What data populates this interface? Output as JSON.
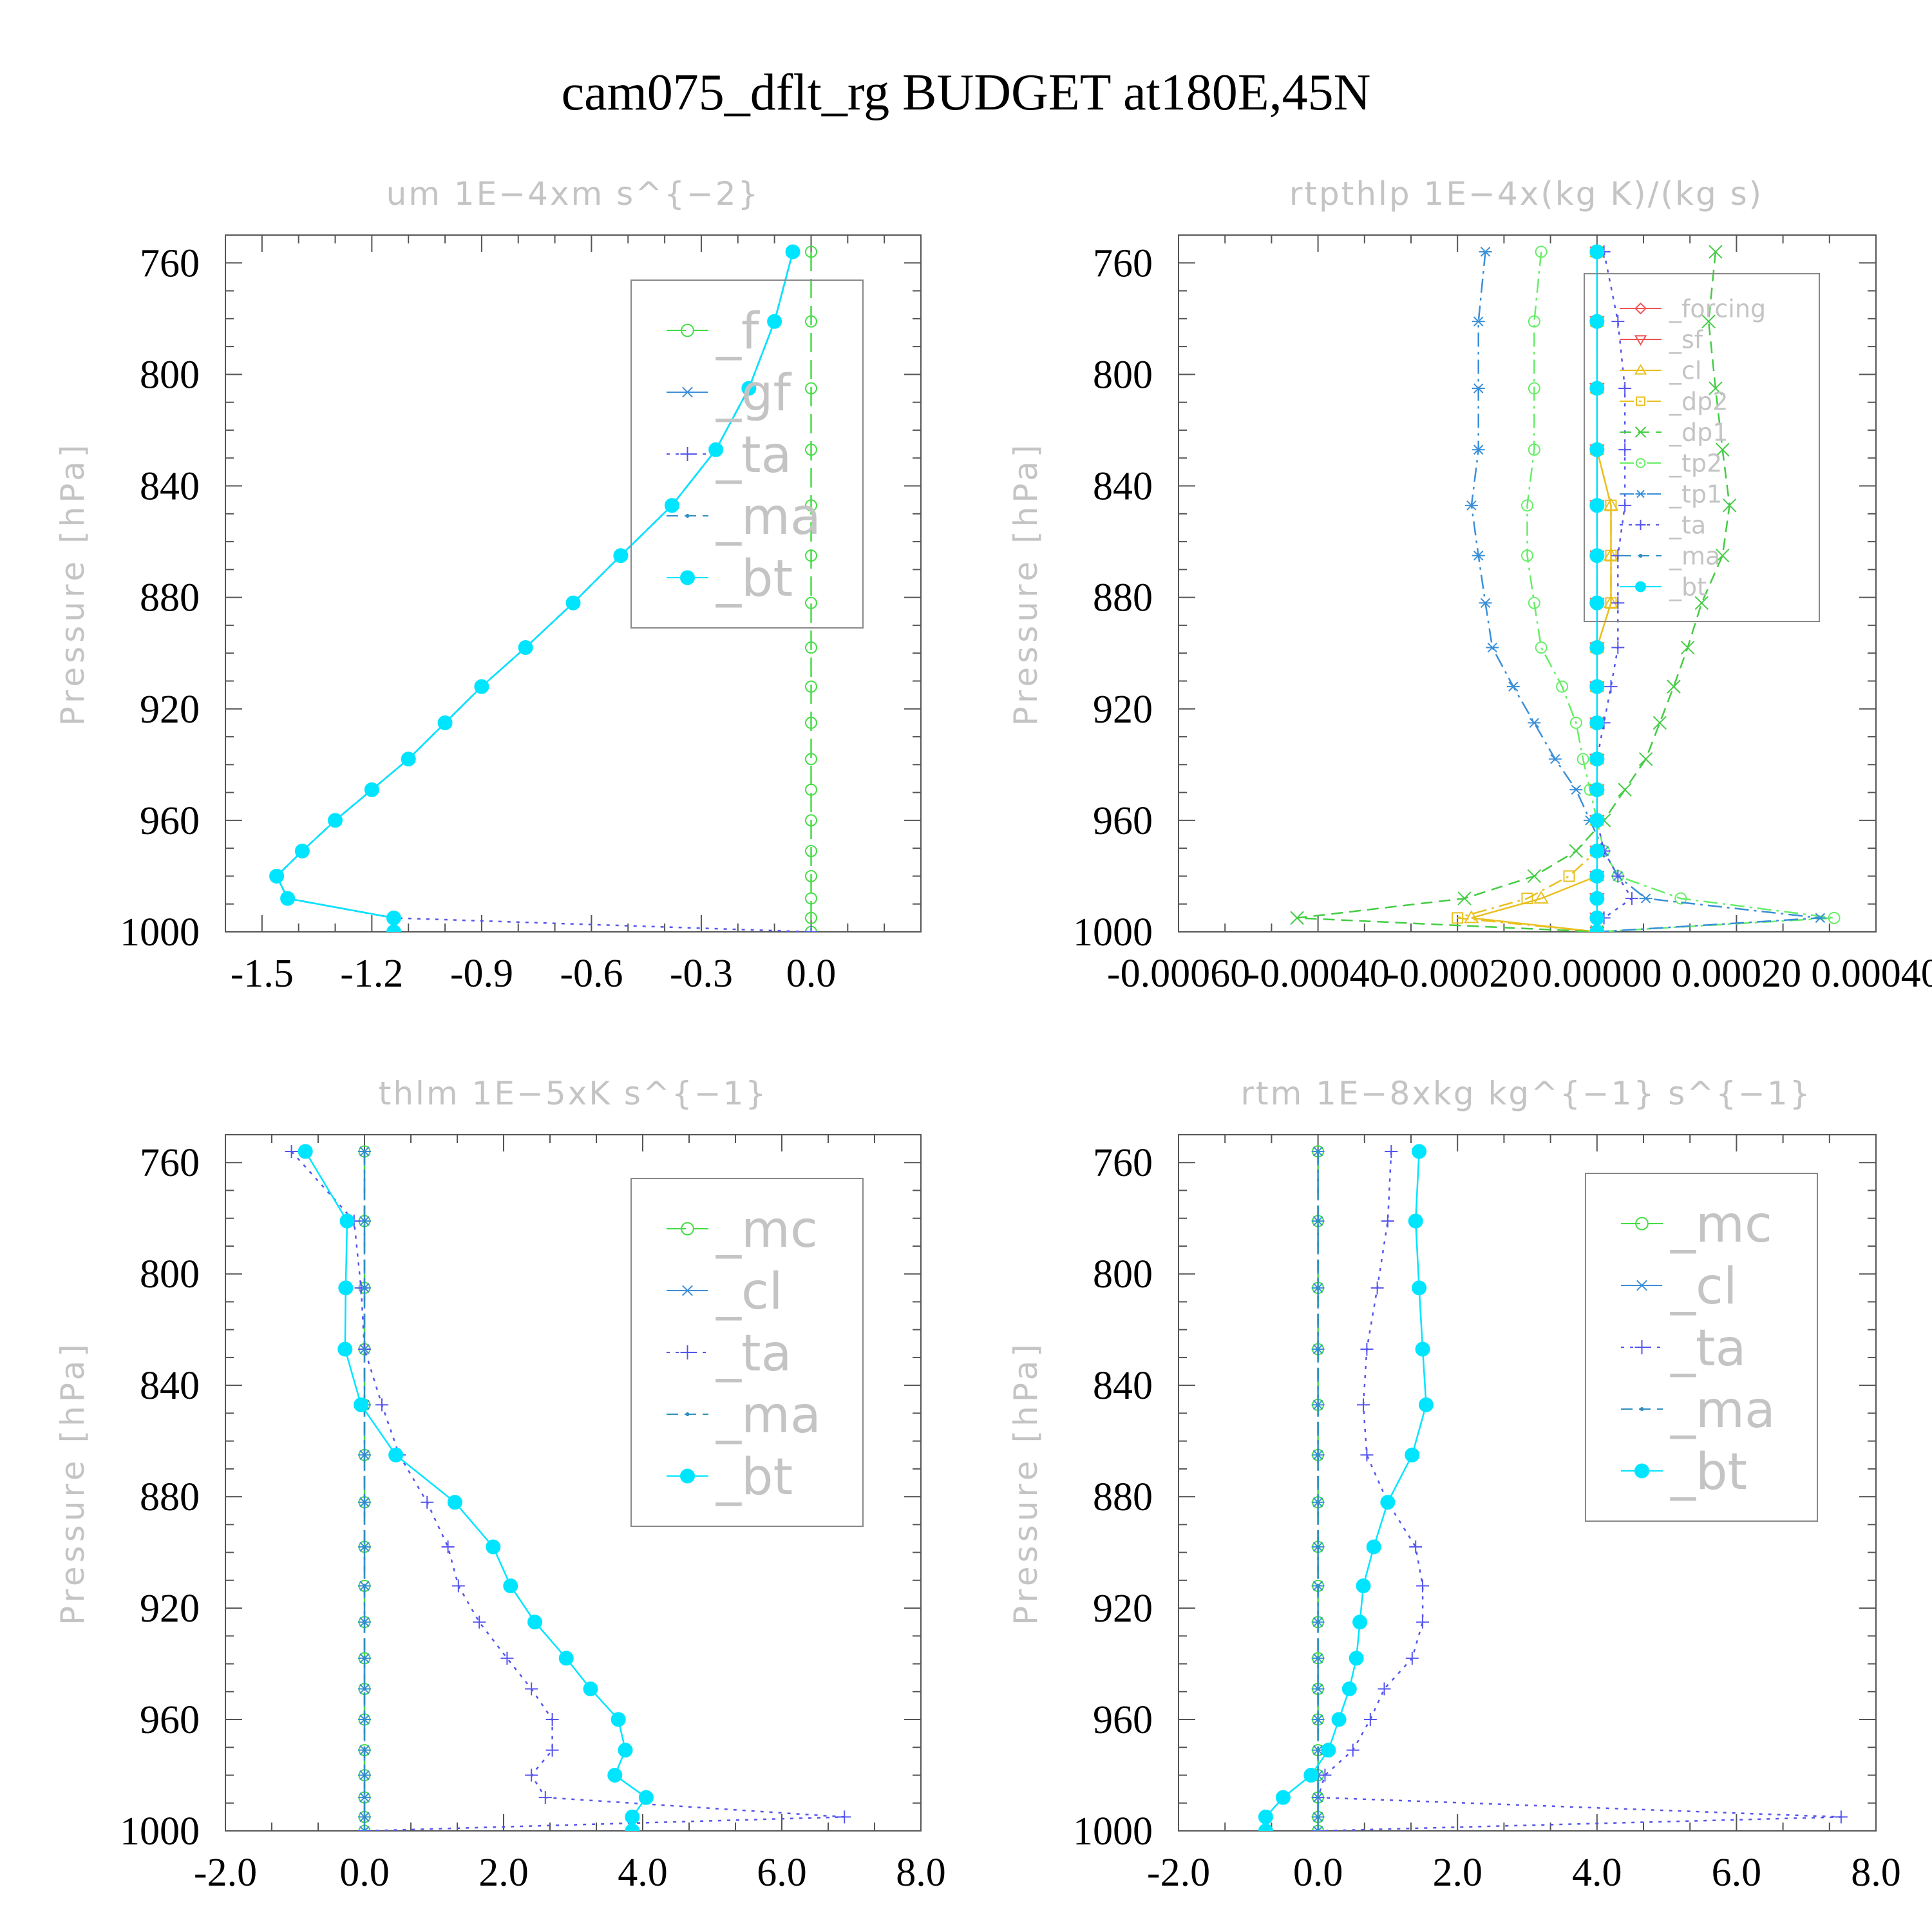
{
  "title": "cam075_dflt_rg  BUDGET at180E,45N",
  "colors": {
    "f": "#44dd44",
    "gf": "#3a8fd8",
    "ta": "#5555ee",
    "ma": "#2f8fc0",
    "bt": "#00e5ff",
    "mc": "#44dd44",
    "cl": "#3a8fd8",
    "forcing": "#ee5555",
    "sf": "#ee5555",
    "cl2": "#e8c020",
    "dp2": "#e8c020",
    "dp1": "#44cc44",
    "tp2": "#66ee66",
    "tp1": "#3a8fd8"
  },
  "chart_data": [
    {
      "id": "um",
      "type": "line",
      "title": "um   1E−4xm s^{−2}",
      "ylabel": "Pressure [hPa]",
      "xlim": [
        -1.6,
        0.3
      ],
      "ylim": [
        1000,
        750
      ],
      "xticks": [
        "-1.5",
        "-1.2",
        "-0.9",
        "-0.6",
        "-0.3",
        "0.0"
      ],
      "xtick_values": [
        -1.5,
        -1.2,
        -0.9,
        -0.6,
        -0.3,
        0.0
      ],
      "yticks": [
        "760",
        "800",
        "840",
        "880",
        "920",
        "960",
        "1000"
      ],
      "ytick_values": [
        760,
        800,
        840,
        880,
        920,
        960,
        1000
      ],
      "grid": false,
      "legend": "top-right",
      "y": [
        756,
        781,
        805,
        827,
        847,
        865,
        882,
        898,
        912,
        925,
        938,
        949,
        960,
        971,
        980,
        988,
        995,
        1000
      ],
      "series": [
        {
          "name": "_f",
          "key": "f",
          "marker": "circle-open",
          "dash": "longdash",
          "values": [
            0,
            0,
            0,
            0,
            0,
            0,
            0,
            0,
            0,
            0,
            0,
            0,
            0,
            0,
            0,
            0,
            0,
            0
          ]
        },
        {
          "name": "_gf",
          "key": "gf",
          "marker": "asterisk",
          "dash": "dashdot",
          "values": [
            -0.05,
            -0.1,
            -0.17,
            -0.26,
            -0.38,
            -0.52,
            -0.65,
            -0.78,
            -0.9,
            -1.0,
            -1.1,
            -1.2,
            -1.3,
            -1.39,
            -1.46,
            -1.43,
            -1.14,
            -1.14
          ]
        },
        {
          "name": "_ta",
          "key": "ta",
          "marker": "plus",
          "dash": "dotted",
          "values": [
            -0.05,
            -0.1,
            -0.17,
            -0.26,
            -0.38,
            -0.52,
            -0.65,
            -0.78,
            -0.9,
            -1.0,
            -1.1,
            -1.2,
            -1.3,
            -1.39,
            -1.46,
            -1.43,
            -1.14,
            0.0
          ]
        },
        {
          "name": "_ma",
          "key": "ma",
          "marker": "dot",
          "dash": "dashed",
          "values": [
            -0.05,
            -0.1,
            -0.17,
            -0.26,
            -0.38,
            -0.52,
            -0.65,
            -0.78,
            -0.9,
            -1.0,
            -1.1,
            -1.2,
            -1.3,
            -1.39,
            -1.46,
            -1.43,
            -1.14,
            -1.14
          ]
        },
        {
          "name": "_bt",
          "key": "bt",
          "marker": "circle-filled",
          "dash": "solid",
          "values": [
            -0.05,
            -0.1,
            -0.17,
            -0.26,
            -0.38,
            -0.52,
            -0.65,
            -0.78,
            -0.9,
            -1.0,
            -1.1,
            -1.2,
            -1.3,
            -1.39,
            -1.46,
            -1.43,
            -1.14,
            -1.14
          ]
        }
      ]
    },
    {
      "id": "rtpthlp",
      "type": "line",
      "title": "rtpthlp   1E−4x(kg K)/(kg s)",
      "ylabel": "Pressure [hPa]",
      "xlim": [
        -0.0006,
        0.0004
      ],
      "ylim": [
        1000,
        750
      ],
      "xticks": [
        "-0.00060",
        "-0.00040",
        "-0.00020",
        "0.00000",
        "0.00020",
        "0.00040"
      ],
      "xtick_values": [
        -0.0006,
        -0.0004,
        -0.0002,
        0.0,
        0.0002,
        0.0004
      ],
      "yticks": [
        "760",
        "800",
        "840",
        "880",
        "920",
        "960",
        "1000"
      ],
      "ytick_values": [
        760,
        800,
        840,
        880,
        920,
        960,
        1000
      ],
      "grid": false,
      "legend": "top-right",
      "y": [
        756,
        781,
        805,
        827,
        847,
        865,
        882,
        898,
        912,
        925,
        938,
        949,
        960,
        971,
        980,
        988,
        995,
        1000
      ],
      "series": [
        {
          "name": "_forcing",
          "key": "forcing",
          "marker": "diamond-open",
          "dash": "solid",
          "values": [
            0,
            0,
            0,
            0,
            0,
            0,
            0,
            0,
            0,
            0,
            0,
            0,
            0,
            0,
            0,
            0,
            0,
            0
          ]
        },
        {
          "name": "_sf",
          "key": "sf",
          "marker": "triangle-down",
          "dash": "solid",
          "values": [
            0,
            0,
            0,
            0,
            0,
            0,
            0,
            0,
            0,
            0,
            0,
            0,
            0,
            0,
            0,
            0,
            0,
            0
          ]
        },
        {
          "name": "_cl",
          "key": "cl2",
          "marker": "triangle-up",
          "dash": "solid",
          "values": [
            0,
            0,
            0,
            0,
            2e-05,
            2e-05,
            2e-05,
            0,
            0,
            0,
            0,
            0,
            0,
            0,
            0,
            -8e-05,
            -0.00018,
            0
          ]
        },
        {
          "name": "_dp2",
          "key": "dp2",
          "marker": "square-open",
          "dash": "dashdot",
          "values": [
            0,
            0,
            0,
            0,
            2e-05,
            2e-05,
            2e-05,
            0,
            0,
            0,
            0,
            0,
            0,
            0,
            -4e-05,
            -0.0001,
            -0.0002,
            0
          ]
        },
        {
          "name": "_dp1",
          "key": "dp1",
          "marker": "x",
          "dash": "dashed",
          "values": [
            0.00017,
            0.00016,
            0.00017,
            0.00018,
            0.00019,
            0.00018,
            0.00015,
            0.00013,
            0.00011,
            9e-05,
            7e-05,
            4e-05,
            1e-05,
            -3e-05,
            -9e-05,
            -0.00019,
            -0.00043,
            0
          ]
        },
        {
          "name": "_tp2",
          "key": "tp2",
          "marker": "circle-open",
          "dash": "dashdot",
          "values": [
            -8e-05,
            -9e-05,
            -9e-05,
            -9e-05,
            -0.0001,
            -0.0001,
            -9e-05,
            -8e-05,
            -5e-05,
            -3e-05,
            -2e-05,
            -1e-05,
            0,
            1e-05,
            3e-05,
            0.00012,
            0.00034,
            0
          ]
        },
        {
          "name": "_tp1",
          "key": "tp1",
          "marker": "asterisk",
          "dash": "dashdot",
          "values": [
            -0.00016,
            -0.00017,
            -0.00017,
            -0.00017,
            -0.00018,
            -0.00017,
            -0.00016,
            -0.00015,
            -0.00012,
            -9e-05,
            -6e-05,
            -3e-05,
            -1e-05,
            1e-05,
            3e-05,
            7e-05,
            0.00032,
            0
          ]
        },
        {
          "name": "_ta",
          "key": "ta",
          "marker": "plus",
          "dash": "dotted",
          "values": [
            1e-05,
            3e-05,
            4e-05,
            4e-05,
            4e-05,
            3e-05,
            3e-05,
            3e-05,
            2e-05,
            1e-05,
            0,
            0,
            0,
            1e-05,
            3e-05,
            5e-05,
            1e-05,
            0
          ]
        },
        {
          "name": "_ma",
          "key": "ma",
          "marker": "dot",
          "dash": "dashed",
          "values": [
            0,
            0,
            0,
            0,
            0,
            0,
            0,
            0,
            0,
            0,
            0,
            0,
            0,
            0,
            0,
            0,
            0,
            0
          ]
        },
        {
          "name": "_bt",
          "key": "bt",
          "marker": "circle-filled",
          "dash": "solid",
          "values": [
            0,
            0,
            0,
            0,
            0,
            0,
            0,
            0,
            0,
            0,
            0,
            0,
            0,
            0,
            0,
            0,
            0,
            0
          ]
        }
      ]
    },
    {
      "id": "thlm",
      "type": "line",
      "title": "thlm   1E−5xK s^{−1}",
      "ylabel": "Pressure [hPa]",
      "xlim": [
        -2.0,
        8.0
      ],
      "ylim": [
        1000,
        750
      ],
      "xticks": [
        "-2.0",
        "0.0",
        "2.0",
        "4.0",
        "6.0",
        "8.0"
      ],
      "xtick_values": [
        -2.0,
        0.0,
        2.0,
        4.0,
        6.0,
        8.0
      ],
      "yticks": [
        "760",
        "800",
        "840",
        "880",
        "920",
        "960",
        "1000"
      ],
      "ytick_values": [
        760,
        800,
        840,
        880,
        920,
        960,
        1000
      ],
      "grid": false,
      "legend": "top-right",
      "y": [
        756,
        781,
        805,
        827,
        847,
        865,
        882,
        898,
        912,
        925,
        938,
        949,
        960,
        971,
        980,
        988,
        995,
        1000
      ],
      "series": [
        {
          "name": "_mc",
          "key": "mc",
          "marker": "circle-open",
          "dash": "longdash",
          "values": [
            0,
            0,
            0,
            0,
            0,
            0,
            0,
            0,
            0,
            0,
            0,
            0,
            0,
            0,
            0,
            0,
            0,
            0
          ]
        },
        {
          "name": "_cl",
          "key": "cl",
          "marker": "asterisk",
          "dash": "dashdot",
          "values": [
            0,
            0,
            0,
            0,
            0,
            0,
            0,
            0,
            0,
            0,
            0,
            0,
            0,
            0,
            0,
            0,
            0,
            0
          ]
        },
        {
          "name": "_ta",
          "key": "ta",
          "marker": "plus",
          "dash": "dotted",
          "values": [
            -1.05,
            -0.15,
            -0.05,
            0.0,
            0.25,
            0.5,
            0.9,
            1.2,
            1.35,
            1.65,
            2.05,
            2.4,
            2.7,
            2.7,
            2.4,
            2.6,
            6.9,
            0.0
          ]
        },
        {
          "name": "_ma",
          "key": "ma",
          "marker": "dot",
          "dash": "dashed",
          "values": [
            0,
            0,
            0,
            0,
            0,
            0,
            0,
            0,
            0,
            0,
            0,
            0,
            0,
            0,
            0,
            0,
            0,
            0
          ]
        },
        {
          "name": "_bt",
          "key": "bt",
          "marker": "circle-filled",
          "dash": "solid",
          "values": [
            -0.85,
            -0.25,
            -0.27,
            -0.28,
            -0.05,
            0.45,
            1.3,
            1.85,
            2.1,
            2.45,
            2.9,
            3.25,
            3.65,
            3.75,
            3.6,
            4.05,
            3.85,
            3.85
          ]
        }
      ]
    },
    {
      "id": "rtm",
      "type": "line",
      "title": "rtm   1E−8xkg kg^{−1} s^{−1}",
      "ylabel": "Pressure [hPa]",
      "xlim": [
        -2.0,
        8.0
      ],
      "ylim": [
        1000,
        750
      ],
      "xticks": [
        "-2.0",
        "0.0",
        "2.0",
        "4.0",
        "6.0",
        "8.0"
      ],
      "xtick_values": [
        -2.0,
        0.0,
        2.0,
        4.0,
        6.0,
        8.0
      ],
      "yticks": [
        "760",
        "800",
        "840",
        "880",
        "920",
        "960",
        "1000"
      ],
      "ytick_values": [
        760,
        800,
        840,
        880,
        920,
        960,
        1000
      ],
      "grid": false,
      "legend": "top-right",
      "y": [
        756,
        781,
        805,
        827,
        847,
        865,
        882,
        898,
        912,
        925,
        938,
        949,
        960,
        971,
        980,
        988,
        995,
        1000
      ],
      "series": [
        {
          "name": "_mc",
          "key": "mc",
          "marker": "circle-open",
          "dash": "longdash",
          "values": [
            0,
            0,
            0,
            0,
            0,
            0,
            0,
            0,
            0,
            0,
            0,
            0,
            0,
            0,
            0,
            0,
            0,
            0
          ]
        },
        {
          "name": "_cl",
          "key": "cl",
          "marker": "asterisk",
          "dash": "dashdot",
          "values": [
            0,
            0,
            0,
            0,
            0,
            0,
            0,
            0,
            0,
            0,
            0,
            0,
            0,
            0,
            0,
            0,
            0,
            0
          ]
        },
        {
          "name": "_ta",
          "key": "ta",
          "marker": "plus",
          "dash": "dotted",
          "values": [
            1.05,
            1.0,
            0.85,
            0.7,
            0.65,
            0.7,
            1.0,
            1.4,
            1.5,
            1.5,
            1.35,
            0.95,
            0.75,
            0.5,
            0.1,
            0.0,
            7.5,
            0.0
          ]
        },
        {
          "name": "_ma",
          "key": "ma",
          "marker": "dot",
          "dash": "dashed",
          "values": [
            0,
            0,
            0,
            0,
            0,
            0,
            0,
            0,
            0,
            0,
            0,
            0,
            0,
            0,
            0,
            0,
            0,
            0
          ]
        },
        {
          "name": "_bt",
          "key": "bt",
          "marker": "circle-filled",
          "dash": "solid",
          "values": [
            1.45,
            1.4,
            1.45,
            1.5,
            1.55,
            1.35,
            1.0,
            0.8,
            0.65,
            0.6,
            0.55,
            0.45,
            0.3,
            0.15,
            -0.1,
            -0.5,
            -0.75,
            -0.75
          ]
        }
      ]
    }
  ]
}
